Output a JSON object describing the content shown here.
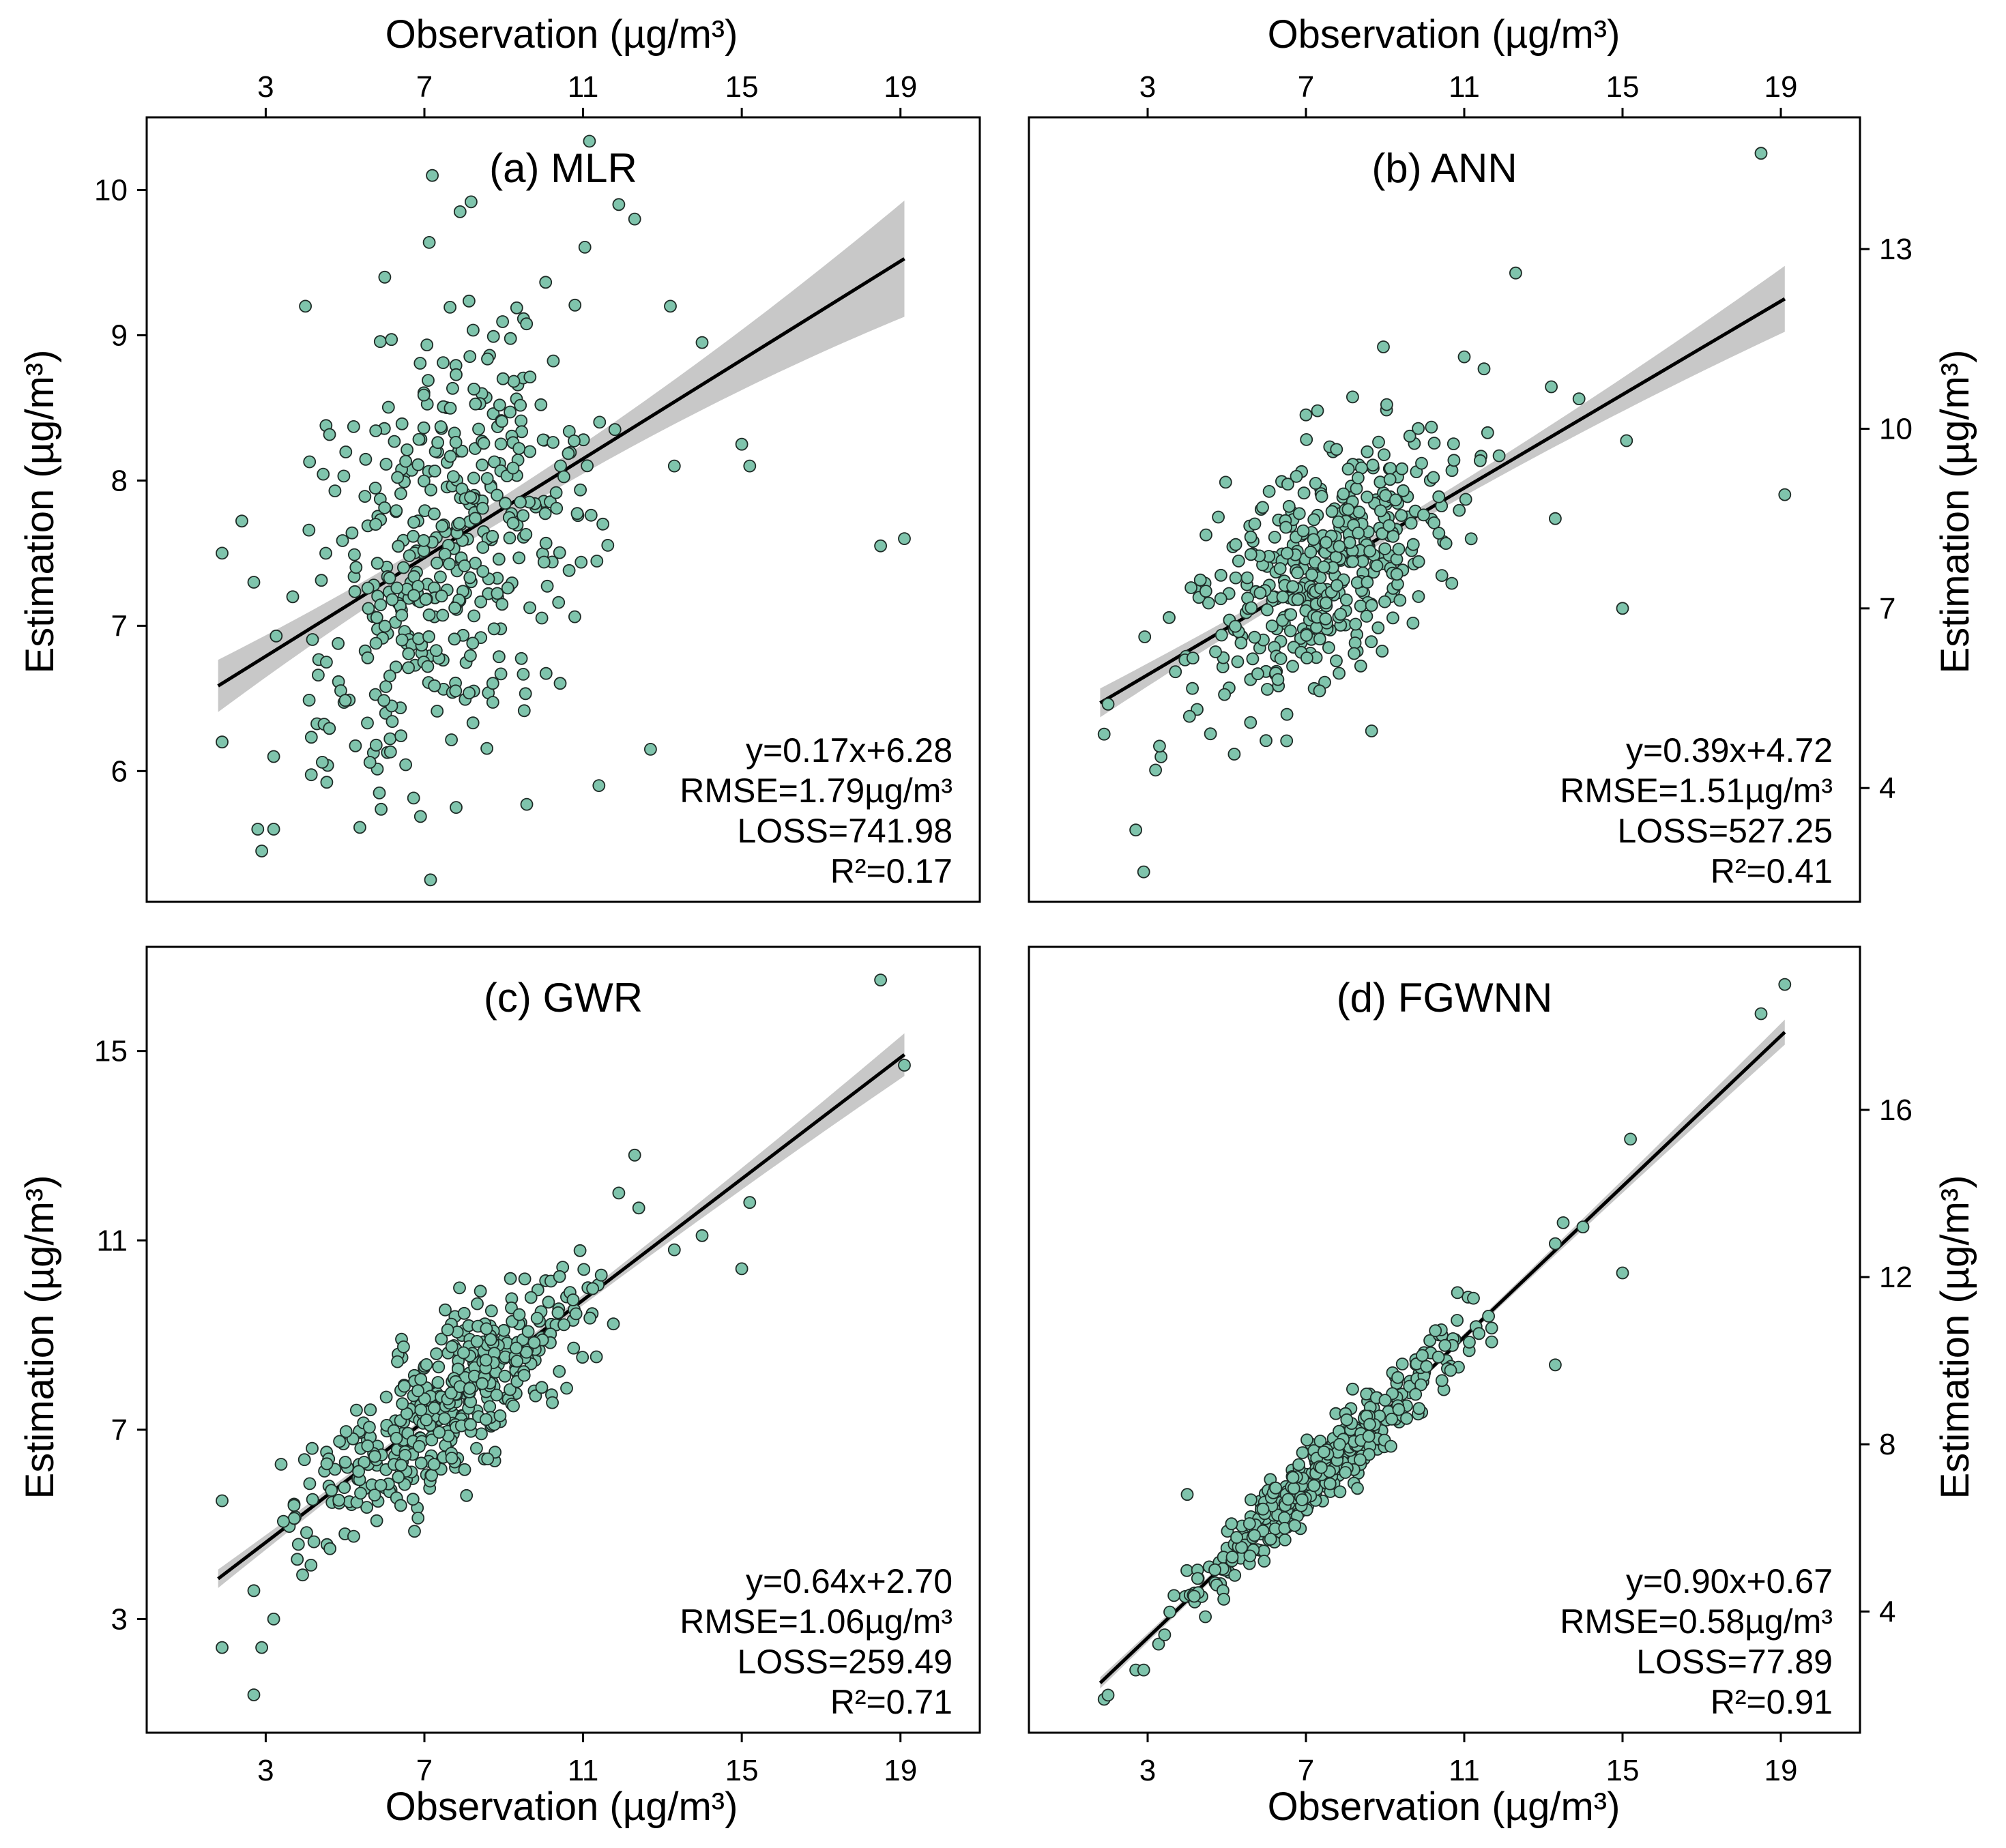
{
  "colors": {
    "marker_fill": "#7fc4ac",
    "marker_edge": "#1e2b26",
    "band": "#c8c8c8",
    "line": "#000000",
    "frame": "#000000"
  },
  "shared": {
    "observation_label": "Observation (µg/m³)",
    "estimation_label": "Estimation (µg/m³)",
    "x_ticks": [
      3,
      7,
      11,
      15,
      19
    ],
    "x_range": [
      0,
      21
    ]
  },
  "chart_data": [
    {
      "id": "a",
      "type": "scatter",
      "title": "(a) MLR",
      "xlabel": "Observation (µg/m³)",
      "ylabel": "Estimation (µg/m³)",
      "xlim": [
        0,
        21
      ],
      "ylim": [
        5.1,
        10.5
      ],
      "xticks": [
        3,
        7,
        11,
        15,
        19
      ],
      "yticks": [
        6,
        7,
        8,
        9,
        10
      ],
      "x_axis_position": "top",
      "y_axis_position": "left",
      "fit": {
        "slope": 0.17,
        "intercept": 6.28,
        "x_from": 1.8,
        "x_to": 19.1,
        "band_end": 0.4,
        "band_mid": 0.08,
        "band_mid_x": 8
      },
      "annotation": [
        "y=0.17x+6.28",
        "RMSE=1.79µg/m³",
        "LOSS=741.98",
        "R²=0.17"
      ],
      "seed": 11,
      "scatter_model": {
        "n": 420,
        "center": 7.6,
        "spread_x": 1.5,
        "slope": 0.17,
        "intercept": 6.28,
        "noise": 0.72
      },
      "highlighted_points": [
        [
          7.2,
          10.1
        ],
        [
          11.9,
          9.9
        ],
        [
          12.3,
          9.8
        ],
        [
          7.9,
          9.85
        ],
        [
          6.0,
          9.4
        ],
        [
          4.0,
          9.2
        ],
        [
          13.2,
          9.2
        ],
        [
          14.0,
          8.95
        ],
        [
          15.0,
          8.25
        ],
        [
          15.2,
          8.1
        ],
        [
          13.3,
          8.1
        ],
        [
          18.5,
          7.55
        ],
        [
          19.1,
          7.6
        ],
        [
          11.5,
          7.7
        ],
        [
          1.9,
          7.5
        ],
        [
          2.7,
          7.3
        ],
        [
          12.7,
          6.15
        ],
        [
          11.4,
          5.9
        ],
        [
          2.8,
          5.6
        ],
        [
          3.2,
          5.6
        ],
        [
          2.9,
          5.45
        ],
        [
          7.8,
          5.75
        ],
        [
          1.9,
          6.2
        ],
        [
          3.2,
          6.1
        ]
      ]
    },
    {
      "id": "b",
      "type": "scatter",
      "title": "(b) ANN",
      "xlabel": "Observation (µg/m³)",
      "ylabel": "Estimation (µg/m³)",
      "xlim": [
        0,
        21
      ],
      "ylim": [
        2.1,
        15.2
      ],
      "xticks": [
        3,
        7,
        11,
        15,
        19
      ],
      "yticks": [
        4,
        7,
        10,
        13
      ],
      "x_axis_position": "top",
      "y_axis_position": "right",
      "fit": {
        "slope": 0.39,
        "intercept": 4.72,
        "x_from": 1.8,
        "x_to": 19.1,
        "band_end": 0.55,
        "band_mid": 0.1,
        "band_mid_x": 8
      },
      "annotation": [
        "y=0.39x+4.72",
        "RMSE=1.51µg/m³",
        "LOSS=527.25",
        "R²=0.41"
      ],
      "seed": 22,
      "scatter_model": {
        "n": 420,
        "center": 7.6,
        "spread_x": 1.5,
        "slope": 0.39,
        "intercept": 4.72,
        "noise": 0.95
      },
      "highlighted_points": [
        [
          18.5,
          14.6
        ],
        [
          12.3,
          12.6
        ],
        [
          11.0,
          11.2
        ],
        [
          11.5,
          11.0
        ],
        [
          13.2,
          10.7
        ],
        [
          13.9,
          10.5
        ],
        [
          15.1,
          9.8
        ],
        [
          19.1,
          8.9
        ],
        [
          15.0,
          7.0
        ],
        [
          2.0,
          5.4
        ],
        [
          1.9,
          4.9
        ],
        [
          2.7,
          3.3
        ],
        [
          2.9,
          2.6
        ],
        [
          3.2,
          4.3
        ],
        [
          3.3,
          4.7
        ],
        [
          13.3,
          8.5
        ]
      ]
    },
    {
      "id": "c",
      "type": "scatter",
      "title": "(c) GWR",
      "xlabel": "Observation (µg/m³)",
      "ylabel": "Estimation (µg/m³)",
      "xlim": [
        0,
        21
      ],
      "ylim": [
        0.6,
        17.2
      ],
      "xticks": [
        3,
        7,
        11,
        15,
        19
      ],
      "yticks": [
        3,
        7,
        11,
        15
      ],
      "x_axis_position": "bottom",
      "y_axis_position": "left",
      "fit": {
        "slope": 0.64,
        "intercept": 2.7,
        "x_from": 1.8,
        "x_to": 19.1,
        "band_end": 0.45,
        "band_mid": 0.08,
        "band_mid_x": 8
      },
      "annotation": [
        "y=0.64x+2.70",
        "RMSE=1.06µg/m³",
        "LOSS=259.49",
        "R²=0.71"
      ],
      "seed": 33,
      "scatter_model": {
        "n": 420,
        "center": 7.6,
        "spread_x": 1.5,
        "slope": 0.64,
        "intercept": 2.7,
        "noise": 0.8
      },
      "highlighted_points": [
        [
          18.5,
          16.5
        ],
        [
          19.1,
          14.7
        ],
        [
          12.3,
          12.8
        ],
        [
          11.9,
          12.0
        ],
        [
          15.2,
          11.8
        ],
        [
          14.0,
          11.1
        ],
        [
          13.3,
          10.8
        ],
        [
          15.0,
          10.4
        ],
        [
          1.9,
          5.5
        ],
        [
          1.9,
          2.4
        ],
        [
          2.7,
          1.4
        ],
        [
          2.9,
          2.4
        ],
        [
          3.2,
          3.0
        ],
        [
          2.7,
          3.6
        ]
      ]
    },
    {
      "id": "d",
      "type": "scatter",
      "title": "(d) FGWNN",
      "xlabel": "Observation (µg/m³)",
      "ylabel": "Estimation (µg/m³)",
      "xlim": [
        0,
        21
      ],
      "ylim": [
        1.1,
        19.9
      ],
      "xticks": [
        3,
        7,
        11,
        15,
        19
      ],
      "yticks": [
        4,
        8,
        12,
        16
      ],
      "x_axis_position": "bottom",
      "y_axis_position": "right",
      "fit": {
        "slope": 0.9,
        "intercept": 0.67,
        "x_from": 1.8,
        "x_to": 19.1,
        "band_end": 0.3,
        "band_mid": 0.06,
        "band_mid_x": 8
      },
      "annotation": [
        "y=0.90x+0.67",
        "RMSE=0.58µg/m³",
        "LOSS=77.89",
        "R²=0.91"
      ],
      "seed": 44,
      "scatter_model": {
        "n": 420,
        "center": 7.6,
        "spread_x": 1.5,
        "slope": 0.9,
        "intercept": 0.67,
        "noise": 0.42
      },
      "highlighted_points": [
        [
          19.1,
          19.0
        ],
        [
          18.5,
          18.3
        ],
        [
          15.2,
          15.3
        ],
        [
          14.0,
          13.2
        ],
        [
          13.5,
          13.3
        ],
        [
          13.3,
          12.8
        ],
        [
          15.0,
          12.1
        ],
        [
          13.3,
          9.9
        ],
        [
          4.0,
          6.8
        ],
        [
          1.9,
          1.9
        ],
        [
          2.0,
          2.0
        ],
        [
          2.7,
          2.6
        ],
        [
          2.9,
          2.6
        ]
      ]
    }
  ]
}
